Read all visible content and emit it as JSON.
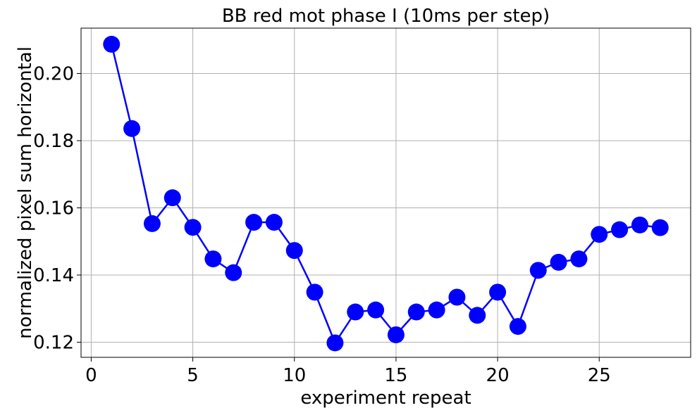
{
  "chart_data": {
    "type": "line",
    "title": "BB red mot phase I (10ms per step)",
    "xlabel": "experiment repeat",
    "ylabel": "normalized pixel sum horizontal",
    "xlim": [
      -0.5,
      29.5
    ],
    "ylim": [
      0.1155,
      0.2135
    ],
    "xticks": [
      0,
      5,
      10,
      15,
      20,
      25
    ],
    "yticks": [
      0.12,
      0.14,
      0.16,
      0.18,
      0.2
    ],
    "xtick_labels": [
      "0",
      "5",
      "10",
      "15",
      "20",
      "25"
    ],
    "ytick_labels": [
      "0.12",
      "0.14",
      "0.16",
      "0.18",
      "0.20"
    ],
    "grid": true,
    "series": [
      {
        "color": "#0000ff",
        "marker": "circle",
        "x": [
          1,
          2,
          3,
          4,
          5,
          6,
          7,
          8,
          9,
          10,
          11,
          12,
          13,
          14,
          15,
          16,
          17,
          18,
          19,
          20,
          21,
          22,
          23,
          24,
          25,
          26,
          27,
          28
        ],
        "values": [
          0.2087,
          0.1836,
          0.1553,
          0.163,
          0.1542,
          0.1448,
          0.1407,
          0.1557,
          0.1557,
          0.1473,
          0.1349,
          0.1198,
          0.129,
          0.1296,
          0.1222,
          0.129,
          0.1296,
          0.1334,
          0.128,
          0.1349,
          0.1247,
          0.1414,
          0.1438,
          0.1448,
          0.1521,
          0.1535,
          0.1549,
          0.1541
        ]
      }
    ]
  }
}
